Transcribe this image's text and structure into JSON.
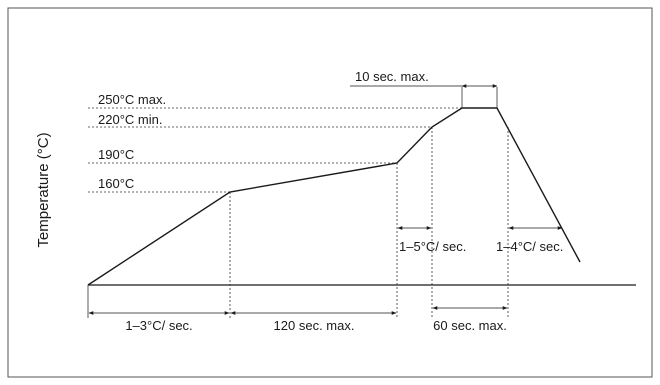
{
  "chart_data": {
    "type": "line",
    "title": "",
    "xlabel": "",
    "ylabel": "Temperature (°C)",
    "series": [
      {
        "points": [
          {
            "t": 0,
            "temp": 0
          },
          {
            "t": 1,
            "temp": 160
          },
          {
            "t": 2.2,
            "temp": 190
          },
          {
            "t": 2.45,
            "temp": 220
          },
          {
            "t": 2.65,
            "temp": 250
          },
          {
            "t": 2.9,
            "temp": 250
          },
          {
            "t": 3.4,
            "temp": 0
          }
        ]
      }
    ],
    "temperature_levels": [
      {
        "value": 250,
        "label": "250°C max."
      },
      {
        "value": 220,
        "label": "220°C min."
      },
      {
        "value": 190,
        "label": "190°C"
      },
      {
        "value": 160,
        "label": "160°C"
      }
    ],
    "interval_annotations": [
      {
        "label": "1–3°C/ sec."
      },
      {
        "label": "120 sec. max."
      },
      {
        "label": "60 sec. max."
      },
      {
        "label": "10 sec. max."
      }
    ],
    "slope_annotations": [
      {
        "label": "1–5°C/ sec."
      },
      {
        "label": "1–4°C/ sec."
      }
    ]
  },
  "colors": {
    "line": "#1a1a1a",
    "guide": "#333333",
    "frame": "#555555",
    "background": "#ffffff"
  }
}
